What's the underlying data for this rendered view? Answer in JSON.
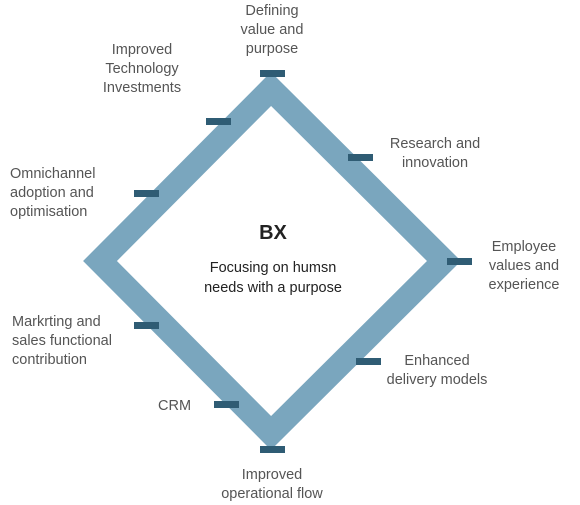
{
  "center": {
    "title": "BX",
    "subtitle": "Focusing on humsn\nneeds with a purpose"
  },
  "labels": {
    "defining": "Defining\nvalue and\npurpose",
    "technology": "Improved\nTechnology\nInvestments",
    "research": "Research and\ninnovation",
    "omnichannel": "Omnichannel\nadoption and\noptimisation",
    "employee": "Employee\nvalues and\nexperience",
    "marketing": "Markrting and\nsales functional\ncontribution",
    "delivery": "Enhanced\ndelivery models",
    "crm": "CRM",
    "operational": "Improved\noperational flow"
  },
  "colors": {
    "frame": "#7aa6be",
    "marker": "#2f5c74"
  }
}
